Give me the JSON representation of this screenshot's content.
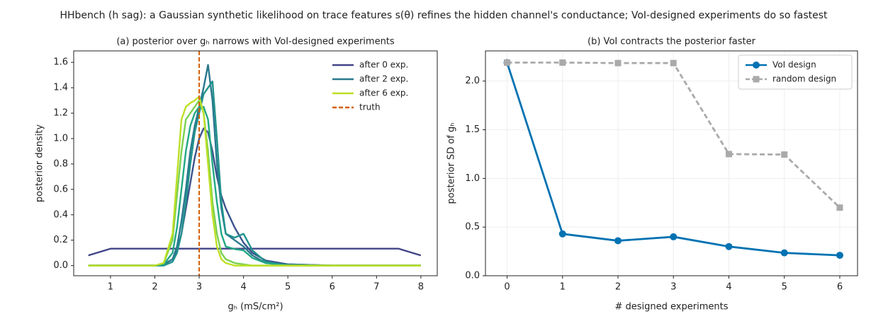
{
  "title": "HHbench (h sag): a Gaussian synthetic likelihood on trace features s(θ) refines the hidden channel's conductance; VoI-designed experiments do so fastest",
  "chart_data": [
    {
      "type": "line",
      "title": "(a) posterior over gₕ narrows with VoI-designed experiments",
      "xlabel": "gₕ (mS/cm²)",
      "ylabel": "posterior density",
      "x": [
        0.5,
        1,
        1.5,
        2,
        2.2,
        2.4,
        2.5,
        2.6,
        2.7,
        2.8,
        2.9,
        3.0,
        3.1,
        3.2,
        3.3,
        3.4,
        3.5,
        3.6,
        3.8,
        4.0,
        4.2,
        4.5,
        5,
        6,
        7,
        7.5,
        8
      ],
      "series": [
        {
          "name": "after 0 exp.",
          "color": "#414487",
          "values": [
            0.08,
            0.133,
            0.133,
            0.133,
            0.133,
            0.133,
            0.133,
            0.133,
            0.133,
            0.133,
            0.133,
            0.133,
            0.133,
            0.133,
            0.133,
            0.133,
            0.133,
            0.133,
            0.133,
            0.133,
            0.133,
            0.133,
            0.133,
            0.133,
            0.133,
            0.133,
            0.08
          ]
        },
        {
          "name": null,
          "color": "#3b528b",
          "values": [
            0,
            0,
            0,
            0,
            0.01,
            0.05,
            0.12,
            0.25,
            0.45,
            0.65,
            0.85,
            1.0,
            1.08,
            1.05,
            0.9,
            0.7,
            0.55,
            0.45,
            0.3,
            0.18,
            0.1,
            0.04,
            0.01,
            0,
            0,
            0,
            0
          ]
        },
        {
          "name": "after 2 exp.",
          "color": "#2a788e",
          "values": [
            0,
            0,
            0,
            0,
            0.01,
            0.05,
            0.15,
            0.35,
            0.6,
            0.9,
            1.1,
            1.25,
            1.4,
            1.58,
            1.3,
            0.8,
            0.45,
            0.25,
            0.2,
            0.15,
            0.08,
            0.02,
            0.01,
            0,
            0,
            0,
            0
          ]
        },
        {
          "name": null,
          "color": "#21918c",
          "values": [
            0,
            0,
            0,
            0,
            0,
            0.03,
            0.1,
            0.25,
            0.5,
            0.8,
            1.05,
            1.2,
            1.35,
            1.4,
            1.45,
            1.0,
            0.5,
            0.25,
            0.22,
            0.25,
            0.12,
            0.03,
            0,
            0,
            0,
            0,
            0
          ]
        },
        {
          "name": null,
          "color": "#22a884",
          "values": [
            0,
            0,
            0,
            0,
            0.01,
            0.1,
            0.3,
            0.6,
            0.9,
            1.1,
            1.2,
            1.25,
            1.25,
            1.15,
            0.8,
            0.5,
            0.25,
            0.15,
            0.13,
            0.12,
            0.06,
            0.02,
            0,
            0,
            0,
            0,
            0
          ]
        },
        {
          "name": null,
          "color": "#7ad151",
          "values": [
            0,
            0,
            0,
            0,
            0.02,
            0.2,
            0.55,
            0.9,
            1.15,
            1.2,
            1.25,
            1.3,
            1.2,
            0.9,
            0.5,
            0.25,
            0.1,
            0.05,
            0.02,
            0.01,
            0,
            0,
            0,
            0,
            0,
            0,
            0
          ]
        },
        {
          "name": "after 6 exp.",
          "color": "#bddf26",
          "values": [
            0,
            0,
            0,
            0,
            0.02,
            0.25,
            0.7,
            1.15,
            1.25,
            1.28,
            1.3,
            1.33,
            1.2,
            0.8,
            0.4,
            0.15,
            0.05,
            0.02,
            0,
            0,
            0,
            0,
            0,
            0,
            0,
            0,
            0
          ]
        }
      ],
      "vlines": [
        {
          "name": "truth",
          "x": 3,
          "color": "#d55e00"
        }
      ],
      "xlim": [
        0.17,
        8.37
      ],
      "ylim": [
        -0.08,
        1.69
      ],
      "xticks": [
        1,
        2,
        3,
        4,
        5,
        6,
        7,
        8
      ],
      "yticks": [
        {
          "value": 0,
          "label": "0.0"
        },
        0.2,
        0.4,
        0.6,
        0.8,
        {
          "value": 1,
          "label": "1.0"
        },
        1.2,
        1.4,
        1.6
      ],
      "grid": false,
      "legend": "upper right",
      "legend_frame": false
    },
    {
      "type": "line",
      "title": "(b) VoI contracts the posterior faster",
      "xlabel": "# designed experiments",
      "ylabel": "posterior SD of gₕ",
      "x": [
        0,
        1,
        2,
        3,
        4,
        5,
        6
      ],
      "series": [
        {
          "name": "VoI design",
          "color": "#0072b2",
          "marker": "circle",
          "dashed": false,
          "values": [
            2.19,
            0.43,
            0.36,
            0.4,
            0.3,
            0.235,
            0.21
          ]
        },
        {
          "name": "random design",
          "color": "#aaaaaa",
          "marker": "square",
          "dashed": true,
          "values": [
            2.19,
            2.19,
            2.185,
            2.185,
            1.25,
            1.245,
            0.7
          ]
        }
      ],
      "xlim": [
        -0.39,
        6.32
      ],
      "ylim": [
        0,
        2.31
      ],
      "xticks": [
        0,
        1,
        2,
        3,
        4,
        5,
        6
      ],
      "yticks": [
        {
          "value": 0,
          "label": "0.0"
        },
        0.5,
        {
          "value": 1,
          "label": "1.0"
        },
        1.5,
        {
          "value": 2,
          "label": "2.0"
        }
      ],
      "grid": true,
      "legend": "upper right",
      "legend_frame": true
    }
  ]
}
